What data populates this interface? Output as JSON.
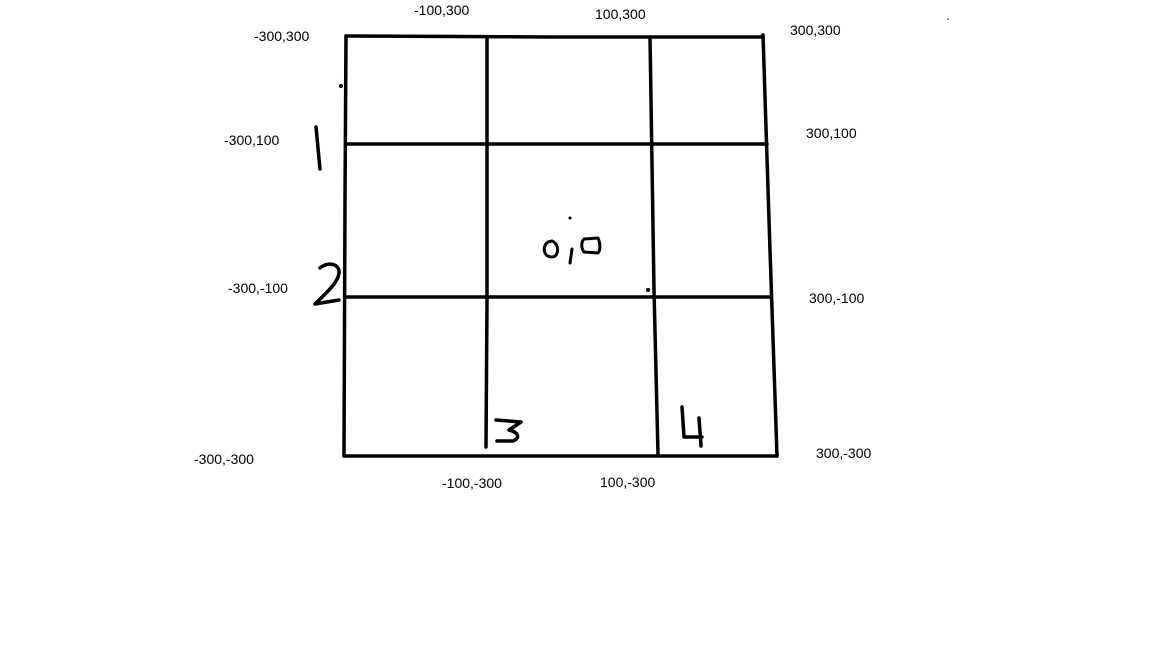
{
  "corner_labels": {
    "top_left": "-300,300",
    "top_mid_left": "-100,300",
    "top_mid_right": "100,300",
    "top_right": "300,300",
    "upper_left": "-300,100",
    "upper_right": "300,100",
    "lower_left": "-300,-100",
    "lower_right": "300,-100",
    "bottom_left": "-300,-300",
    "bottom_mid_left": "-100,-300",
    "bottom_mid_right": "100,-300",
    "bottom_right": "300,-300"
  },
  "handwritten": {
    "line_1": "1",
    "line_2": "2",
    "line_3": "3",
    "line_4": "4",
    "origin": "0,0"
  },
  "colors": {
    "ink": "#000000",
    "background": "#ffffff"
  }
}
